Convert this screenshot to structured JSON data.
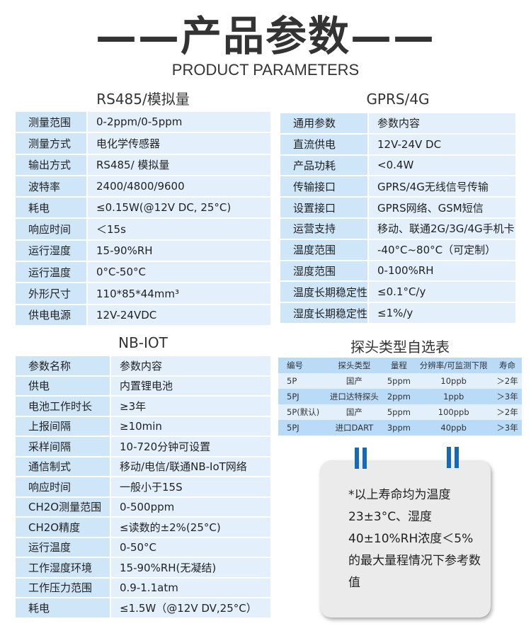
{
  "header": {
    "title": "——产品参数——",
    "subtitle": "PRODUCT PARAMETERS"
  },
  "rs485": {
    "title": "RS485/模拟量",
    "rows": [
      [
        "测量范围",
        "0-2ppm/0-5ppm"
      ],
      [
        "测量方式",
        "电化学传感器"
      ],
      [
        "输出方式",
        "RS485/ 模拟量"
      ],
      [
        "波特率",
        "2400/4800/9600"
      ],
      [
        "耗电",
        "≤0.15W(@12V DC, 25°C)"
      ],
      [
        "响应时间",
        "＜15s"
      ],
      [
        "运行湿度",
        "15-90%RH"
      ],
      [
        "运行温度",
        "0°C-50°C"
      ],
      [
        "外形尺寸",
        "110*85*44mm³"
      ],
      [
        "供电电源",
        "12V-24VDC"
      ]
    ]
  },
  "gprs": {
    "title": "GPRS/4G",
    "rows": [
      [
        "通用参数",
        "参数内容"
      ],
      [
        "直流供电",
        "12V-24V DC"
      ],
      [
        "产品功耗",
        "<0.4W"
      ],
      [
        "传输接口",
        "GPRS/4G无线信号传输"
      ],
      [
        "设置接口",
        "GPRS网络、GSM短信"
      ],
      [
        "运营支持",
        "移动、联通2G/3G/4G手机卡"
      ],
      [
        "温度范围",
        "-40°C~80°C（可定制）"
      ],
      [
        "湿度范围",
        "0-100%RH"
      ],
      [
        "温度长期稳定性",
        "≤0.1°C/y"
      ],
      [
        "湿度长期稳定性",
        "≤1%/y"
      ]
    ]
  },
  "nbiot": {
    "title": "NB-IOT",
    "rows": [
      [
        "参数名称",
        "参数内容"
      ],
      [
        "供电",
        "内置锂电池"
      ],
      [
        "电池工作时长",
        "≥3年"
      ],
      [
        "上报间隔",
        "≥10min"
      ],
      [
        "采样间隔",
        "10-720分钟可设置"
      ],
      [
        "通信制式",
        "移动/电信/联通NB-IoT网络"
      ],
      [
        "响应时间",
        "一般小于15S"
      ],
      [
        "CH2O测量范围",
        "0-500ppm"
      ],
      [
        "CH2O精度",
        "≤读数的±2%(25°C)"
      ],
      [
        "运行温度",
        "0-50°C"
      ],
      [
        "工作湿度环境",
        "15-90%RH(无凝结)"
      ],
      [
        "工作压力范围",
        "0.9-1.1atm"
      ],
      [
        "耗电",
        "≤1.5W（@12V DV,25°C）"
      ]
    ]
  },
  "probe": {
    "title": "探头类型自选表",
    "rows": [
      [
        "编号",
        "探头类型",
        "量程",
        "分辨率/可监测下限",
        "寿命"
      ],
      [
        "5P",
        "国产",
        "5ppm",
        "10ppb",
        "＞2年"
      ],
      [
        "5PJ",
        "进口达特探头",
        "2ppm",
        "1ppb",
        "＞3年"
      ],
      [
        "5P(默认)",
        "国产",
        "5ppm",
        "100ppb",
        "＞2年"
      ],
      [
        "5PJ",
        "进口DART",
        "3ppm",
        "40ppb",
        "＞3年"
      ]
    ]
  },
  "note": {
    "text": "*以上寿命均为温度23±3°C、湿度40±10%RH浓度＜5%的最大量程情况下参考数值"
  },
  "colors": {
    "label_bg": "#cfe5f8",
    "value_bg": "#e3f0fc",
    "clip": "#1569b8"
  }
}
